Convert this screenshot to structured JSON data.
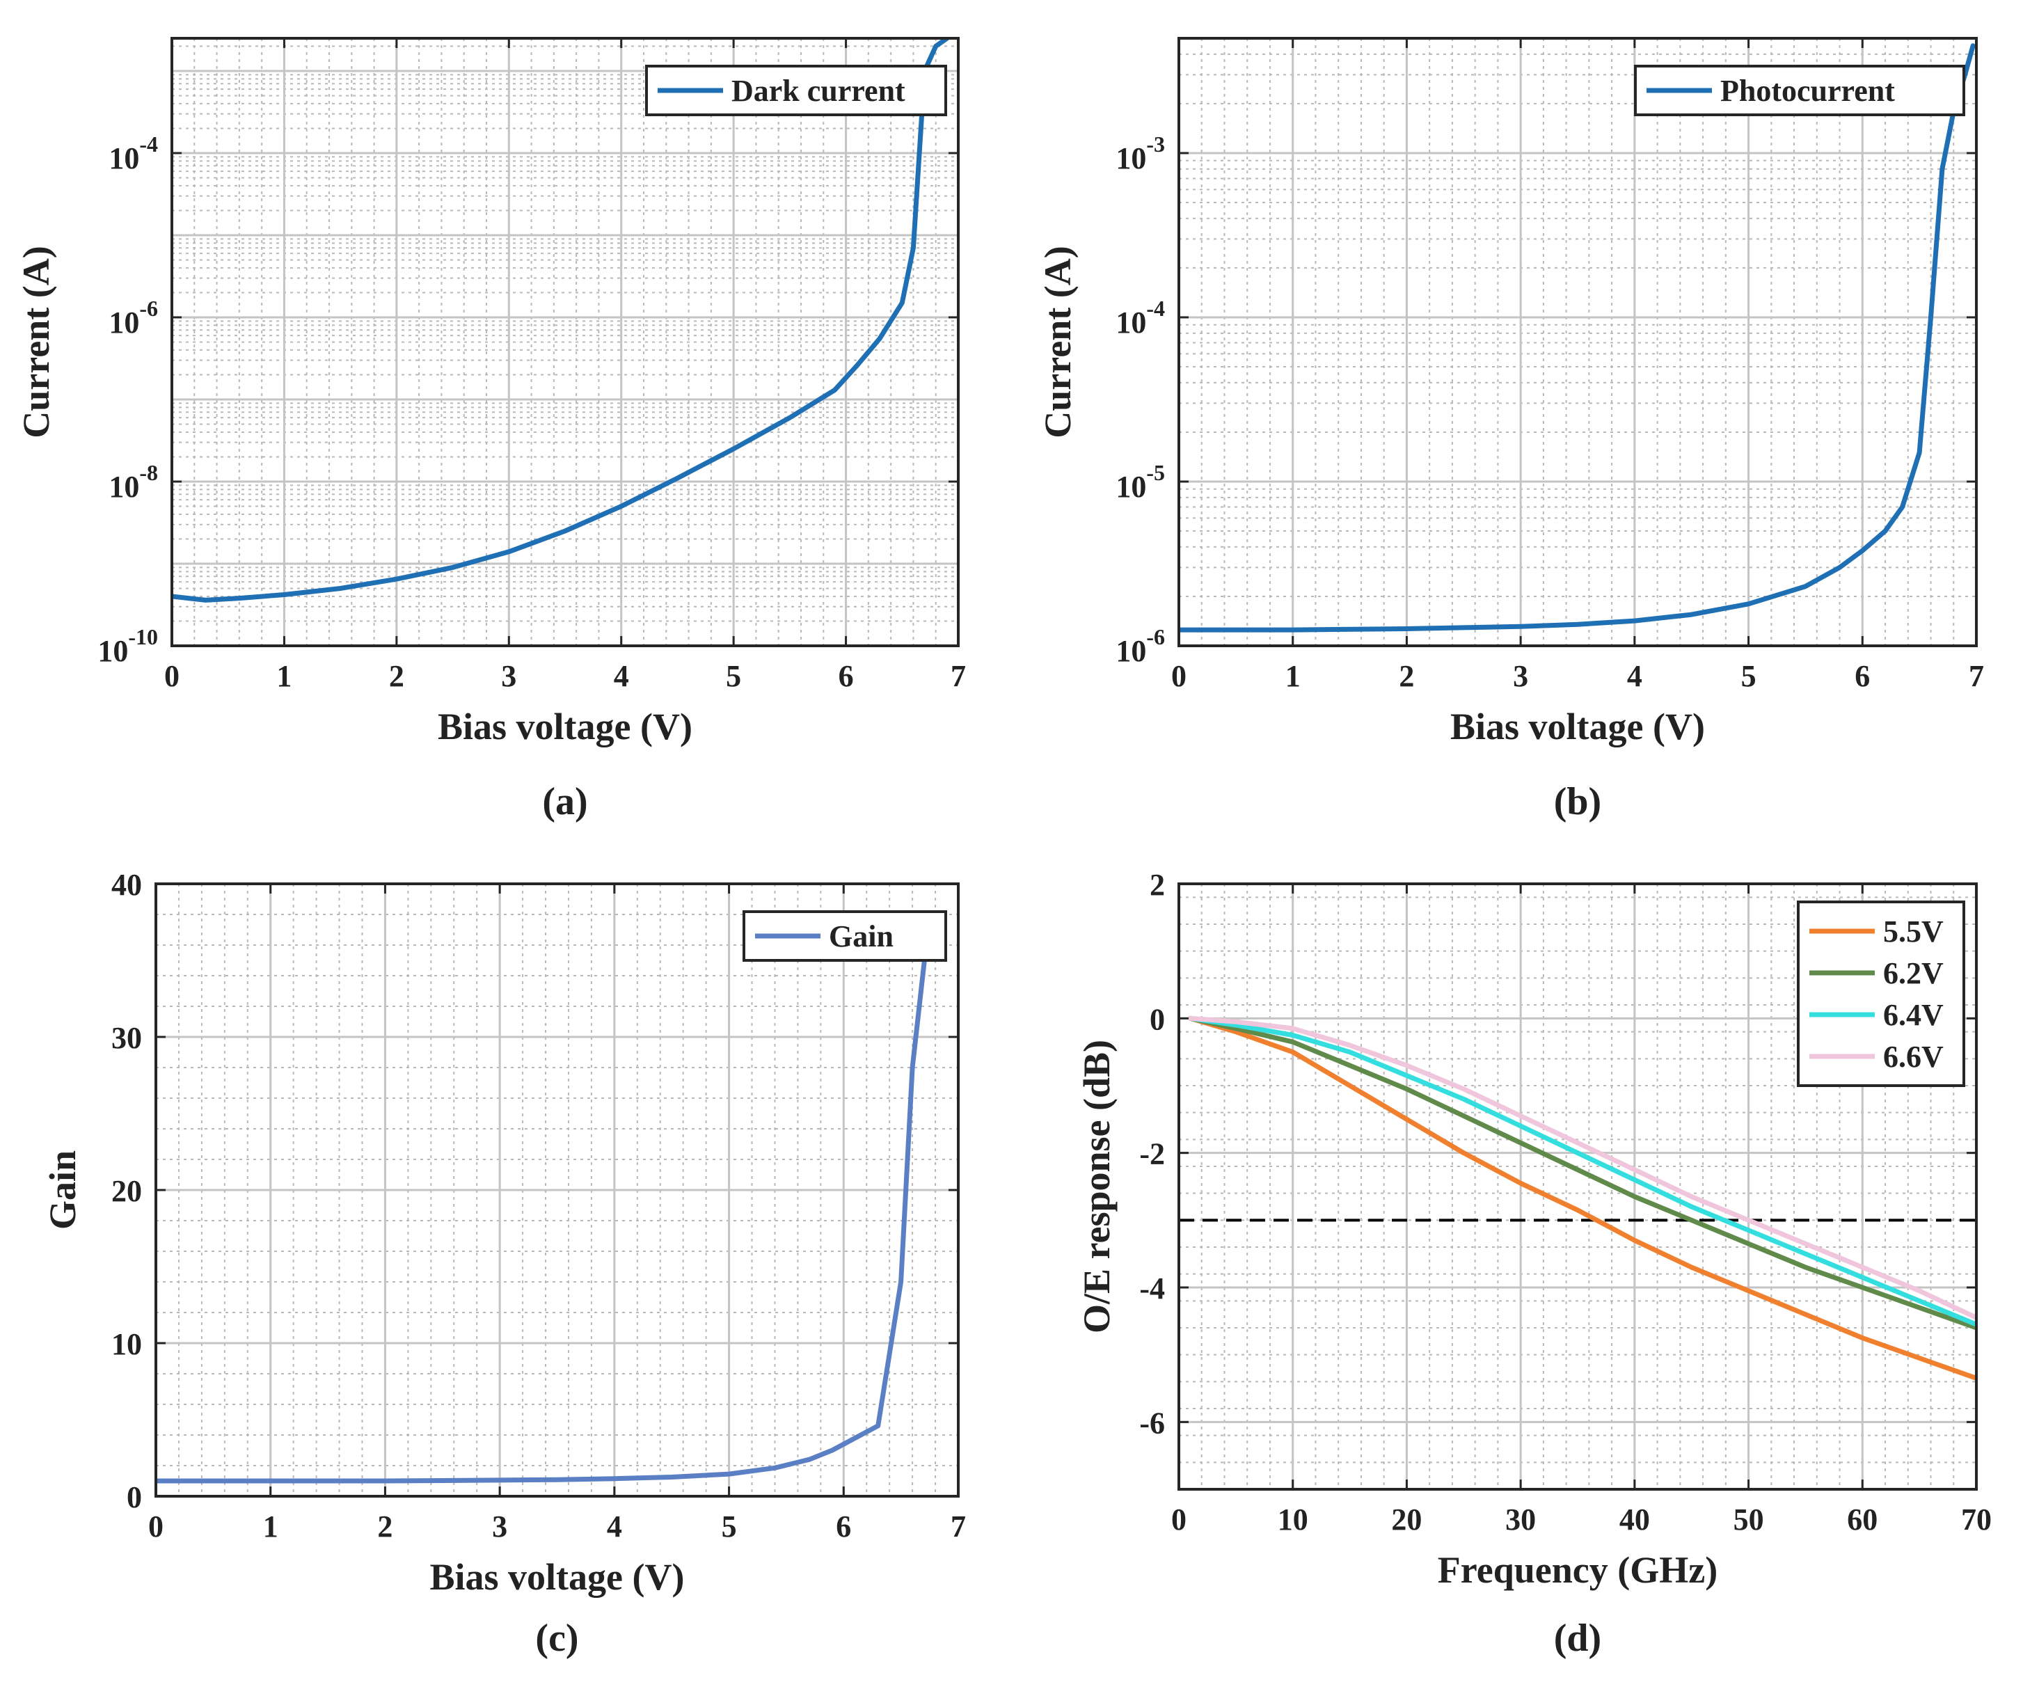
{
  "chart_data": [
    {
      "type": "line",
      "caption": "(a)",
      "xlabel": "Bias voltage (V)",
      "ylabel": "Current (A)",
      "yscale": "log",
      "xlim": [
        0,
        7
      ],
      "ylim": [
        1e-10,
        0.0025
      ],
      "xticks": [
        0,
        1,
        2,
        3,
        4,
        5,
        6,
        7
      ],
      "yticks": [
        {
          "value": 1e-10,
          "base": "10",
          "exp": "-10"
        },
        {
          "value": 1e-08,
          "base": "10",
          "exp": "-8"
        },
        {
          "value": 1e-06,
          "base": "10",
          "exp": "-6"
        },
        {
          "value": 0.0001,
          "base": "10",
          "exp": "-4"
        }
      ],
      "grid": true,
      "legend_position": "top-right",
      "series": [
        {
          "name": "Dark current",
          "color": "#1f6fb5",
          "x": [
            0,
            0.3,
            0.6,
            1.0,
            1.5,
            2.0,
            2.5,
            3.0,
            3.5,
            4.0,
            4.5,
            5.0,
            5.5,
            5.9,
            6.1,
            6.3,
            6.5,
            6.6,
            6.7,
            6.8,
            6.9
          ],
          "y": [
            4e-10,
            3.6e-10,
            3.8e-10,
            4.2e-10,
            5e-10,
            6.5e-10,
            9e-10,
            1.4e-09,
            2.5e-09,
            5e-09,
            1.1e-08,
            2.5e-08,
            6e-08,
            1.3e-07,
            2.6e-07,
            5.5e-07,
            1.5e-06,
            7e-06,
            0.001,
            0.002,
            0.0025
          ]
        }
      ]
    },
    {
      "type": "line",
      "caption": "(b)",
      "xlabel": "Bias voltage (V)",
      "ylabel": "Current (A)",
      "yscale": "log",
      "xlim": [
        0,
        7
      ],
      "ylim": [
        1e-06,
        0.005
      ],
      "xticks": [
        0,
        1,
        2,
        3,
        4,
        5,
        6,
        7
      ],
      "yticks": [
        {
          "value": 1e-06,
          "base": "10",
          "exp": "-6"
        },
        {
          "value": 1e-05,
          "base": "10",
          "exp": "-5"
        },
        {
          "value": 0.0001,
          "base": "10",
          "exp": "-4"
        },
        {
          "value": 0.001,
          "base": "10",
          "exp": "-3"
        }
      ],
      "grid": true,
      "legend_position": "top-right",
      "series": [
        {
          "name": "Photocurrent",
          "color": "#1f6fb5",
          "x": [
            0,
            1,
            2,
            3,
            3.5,
            4.0,
            4.5,
            5.0,
            5.5,
            5.8,
            6.0,
            6.2,
            6.35,
            6.5,
            6.6,
            6.7,
            6.8,
            6.9,
            6.97
          ],
          "y": [
            1.25e-06,
            1.25e-06,
            1.27e-06,
            1.31e-06,
            1.35e-06,
            1.42e-06,
            1.55e-06,
            1.8e-06,
            2.3e-06,
            3e-06,
            3.8e-06,
            5e-06,
            7e-06,
            1.5e-05,
            0.0001,
            0.0008,
            0.0018,
            0.003,
            0.0045
          ]
        }
      ]
    },
    {
      "type": "line",
      "caption": "(c)",
      "xlabel": "Bias voltage (V)",
      "ylabel": "Gain",
      "yscale": "linear",
      "xlim": [
        0,
        7
      ],
      "ylim": [
        0,
        40
      ],
      "xticks": [
        0,
        1,
        2,
        3,
        4,
        5,
        6,
        7
      ],
      "yticks": [
        0,
        10,
        20,
        30,
        40
      ],
      "grid": true,
      "legend_position": "top-right",
      "series": [
        {
          "name": "Gain",
          "color": "#5b7fc4",
          "x": [
            0,
            1,
            2,
            3,
            3.5,
            4.0,
            4.5,
            5.0,
            5.4,
            5.7,
            5.9,
            6.1,
            6.3,
            6.5,
            6.6,
            6.75
          ],
          "y": [
            1.0,
            1.0,
            1.0,
            1.05,
            1.08,
            1.15,
            1.25,
            1.45,
            1.85,
            2.4,
            3.0,
            3.8,
            4.6,
            14,
            28,
            38
          ]
        }
      ]
    },
    {
      "type": "line",
      "caption": "(d)",
      "xlabel": "Frequency (GHz)",
      "ylabel": "O/E response (dB)",
      "yscale": "linear",
      "xlim": [
        0,
        70
      ],
      "ylim": [
        -7,
        2
      ],
      "xticks": [
        0,
        10,
        20,
        30,
        40,
        50,
        60,
        70
      ],
      "yticks": [
        -6,
        -4,
        -2,
        0,
        2
      ],
      "grid": true,
      "legend_position": "top-right",
      "reference_line": {
        "y": -3,
        "style": "dashed",
        "color": "#000000"
      },
      "series": [
        {
          "name": "5.5V",
          "color": "#f07f2e",
          "x": [
            1,
            5,
            10,
            15,
            20,
            25,
            30,
            35,
            40,
            45,
            50,
            55,
            60,
            65,
            70
          ],
          "y": [
            0,
            -0.2,
            -0.5,
            -1.0,
            -1.5,
            -2.0,
            -2.45,
            -2.85,
            -3.3,
            -3.7,
            -4.05,
            -4.4,
            -4.75,
            -5.05,
            -5.35
          ]
        },
        {
          "name": "6.2V",
          "color": "#5f8a4a",
          "x": [
            1,
            5,
            10,
            15,
            20,
            25,
            30,
            35,
            40,
            45,
            50,
            55,
            60,
            65,
            70
          ],
          "y": [
            0,
            -0.15,
            -0.35,
            -0.7,
            -1.05,
            -1.45,
            -1.85,
            -2.25,
            -2.65,
            -3.0,
            -3.35,
            -3.7,
            -4.0,
            -4.3,
            -4.6
          ]
        },
        {
          "name": "6.4V",
          "color": "#35dede",
          "x": [
            1,
            5,
            10,
            15,
            20,
            25,
            30,
            35,
            40,
            45,
            50,
            55,
            60,
            65,
            70
          ],
          "y": [
            0,
            -0.1,
            -0.25,
            -0.5,
            -0.85,
            -1.2,
            -1.6,
            -2.0,
            -2.4,
            -2.8,
            -3.15,
            -3.5,
            -3.85,
            -4.2,
            -4.55
          ]
        },
        {
          "name": "6.6V",
          "color": "#efc6dc",
          "x": [
            1,
            5,
            10,
            15,
            20,
            25,
            30,
            35,
            40,
            45,
            50,
            55,
            60,
            65,
            70
          ],
          "y": [
            0,
            -0.05,
            -0.15,
            -0.4,
            -0.7,
            -1.05,
            -1.45,
            -1.85,
            -2.25,
            -2.65,
            -3.0,
            -3.35,
            -3.7,
            -4.05,
            -4.45
          ]
        }
      ]
    }
  ]
}
